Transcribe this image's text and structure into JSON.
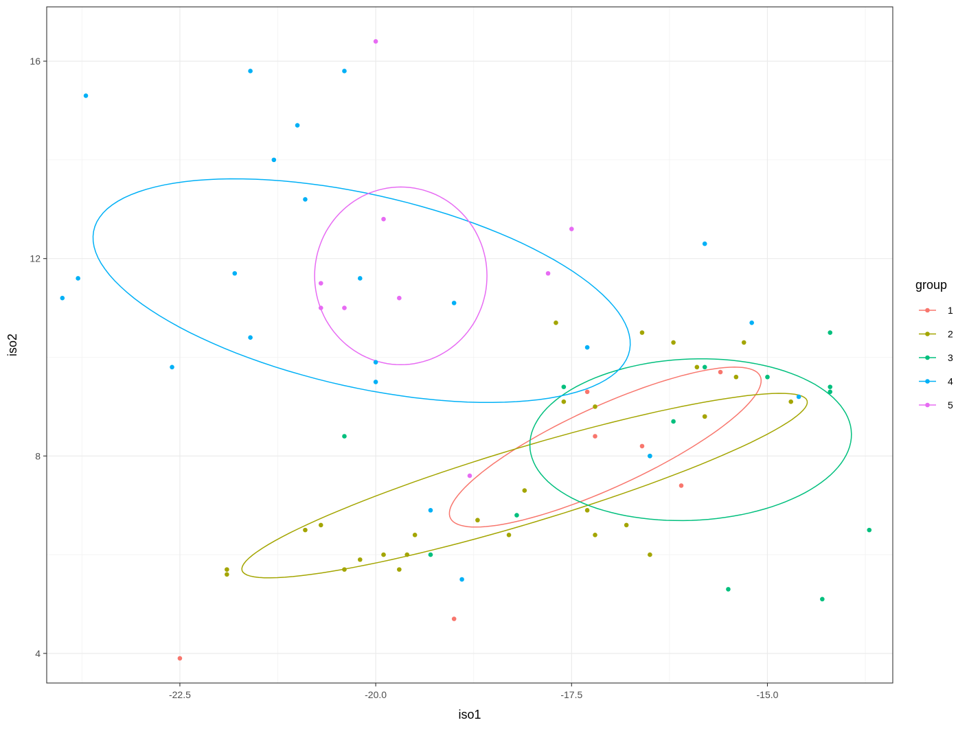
{
  "chart_data": {
    "type": "scatter",
    "xlabel": "iso1",
    "ylabel": "iso2",
    "xlim": [
      -24.2,
      -13.4
    ],
    "ylim": [
      3.4,
      17.1
    ],
    "x_ticks": [
      {
        "value": -22.5,
        "label": "-22.5"
      },
      {
        "value": -20.0,
        "label": "-20.0"
      },
      {
        "value": -17.5,
        "label": "-17.5"
      },
      {
        "value": -15.0,
        "label": "-15.0"
      }
    ],
    "y_ticks": [
      {
        "value": 4,
        "label": "4"
      },
      {
        "value": 8,
        "label": "8"
      },
      {
        "value": 12,
        "label": "12"
      },
      {
        "value": 16,
        "label": "16"
      }
    ],
    "grid": true,
    "legend": {
      "title": "group",
      "position": "right"
    },
    "series": [
      {
        "name": "1",
        "color": "#F8766D",
        "points": [
          [
            -22.5,
            3.9
          ],
          [
            -19.0,
            4.7
          ],
          [
            -17.3,
            9.3
          ],
          [
            -17.2,
            8.4
          ],
          [
            -16.6,
            8.2
          ],
          [
            -16.1,
            7.4
          ],
          [
            -15.8,
            8.8
          ],
          [
            -15.6,
            9.7
          ]
        ],
        "ellipse": {
          "cx": -17.07,
          "cy": 8.18,
          "a": 2.46,
          "b": 0.73,
          "angle_deg": 38
        }
      },
      {
        "name": "2",
        "color": "#A3A500",
        "points": [
          [
            -21.9,
            5.7
          ],
          [
            -21.9,
            5.6
          ],
          [
            -20.9,
            6.5
          ],
          [
            -20.7,
            6.6
          ],
          [
            -20.4,
            5.7
          ],
          [
            -20.2,
            5.9
          ],
          [
            -19.9,
            6.0
          ],
          [
            -19.7,
            5.7
          ],
          [
            -19.6,
            6.0
          ],
          [
            -19.5,
            6.4
          ],
          [
            -18.7,
            6.7
          ],
          [
            -18.3,
            6.4
          ],
          [
            -18.1,
            7.3
          ],
          [
            -17.7,
            10.7
          ],
          [
            -17.6,
            9.1
          ],
          [
            -17.3,
            6.9
          ],
          [
            -17.2,
            9.0
          ],
          [
            -17.2,
            6.4
          ],
          [
            -16.8,
            6.6
          ],
          [
            -16.6,
            10.5
          ],
          [
            -16.5,
            6.0
          ],
          [
            -16.2,
            10.3
          ],
          [
            -15.9,
            9.8
          ],
          [
            -15.8,
            8.8
          ],
          [
            -15.4,
            9.6
          ],
          [
            -15.3,
            10.3
          ],
          [
            -14.7,
            9.1
          ]
        ],
        "ellipse": {
          "cx": -18.1,
          "cy": 7.4,
          "a": 4.0,
          "b": 0.72,
          "angle_deg": 26
        }
      },
      {
        "name": "3",
        "color": "#00BF7D",
        "points": [
          [
            -20.4,
            8.4
          ],
          [
            -18.2,
            6.8
          ],
          [
            -17.6,
            9.4
          ],
          [
            -16.2,
            8.7
          ],
          [
            -15.8,
            9.8
          ],
          [
            -15.5,
            5.3
          ],
          [
            -15.0,
            9.6
          ],
          [
            -14.3,
            5.1
          ],
          [
            -14.2,
            10.5
          ],
          [
            -14.2,
            9.4
          ],
          [
            -14.2,
            9.3
          ],
          [
            -13.7,
            6.5
          ],
          [
            -19.3,
            6.0
          ],
          [
            -16.5,
            8.0
          ]
        ],
        "ellipse": {
          "cx": -15.98,
          "cy": 8.33,
          "a": 2.06,
          "b": 1.63,
          "angle_deg": 8
        }
      },
      {
        "name": "4",
        "color": "#00B0F6",
        "points": [
          [
            -24.0,
            11.2
          ],
          [
            -23.8,
            11.6
          ],
          [
            -23.7,
            15.3
          ],
          [
            -22.6,
            9.8
          ],
          [
            -21.8,
            11.7
          ],
          [
            -21.6,
            10.4
          ],
          [
            -21.6,
            15.8
          ],
          [
            -21.3,
            14.0
          ],
          [
            -21.0,
            14.7
          ],
          [
            -20.9,
            13.2
          ],
          [
            -20.4,
            15.8
          ],
          [
            -20.2,
            11.6
          ],
          [
            -20.0,
            9.9
          ],
          [
            -20.0,
            9.5
          ],
          [
            -19.3,
            6.9
          ],
          [
            -19.0,
            11.1
          ],
          [
            -18.9,
            5.5
          ],
          [
            -17.3,
            10.2
          ],
          [
            -16.5,
            8.0
          ],
          [
            -15.8,
            12.3
          ],
          [
            -15.2,
            10.7
          ],
          [
            -14.6,
            9.2
          ]
        ],
        "ellipse": {
          "cx": -20.18,
          "cy": 11.35,
          "a": 3.66,
          "b": 1.87,
          "angle_deg": -24
        }
      },
      {
        "name": "5",
        "color": "#E76BF3",
        "points": [
          [
            -20.7,
            11.5
          ],
          [
            -20.7,
            11.0
          ],
          [
            -20.4,
            11.0
          ],
          [
            -20.0,
            16.4
          ],
          [
            -19.9,
            12.8
          ],
          [
            -19.7,
            11.2
          ],
          [
            -18.8,
            7.6
          ],
          [
            -17.8,
            11.7
          ],
          [
            -17.5,
            12.6
          ]
        ],
        "ellipse": {
          "cx": -19.68,
          "cy": 11.65,
          "a": 1.1,
          "b": 1.8,
          "angle_deg": 0
        }
      }
    ]
  }
}
